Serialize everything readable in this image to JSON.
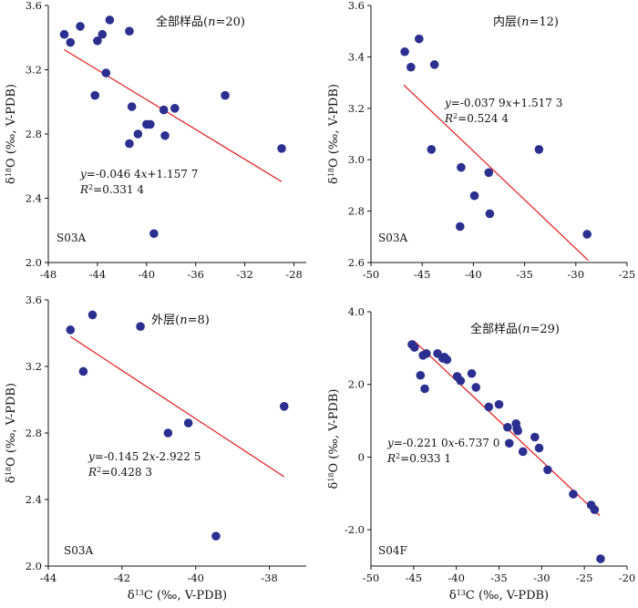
{
  "colors": {
    "point": "#2b2f8f",
    "fit_line": "#e31a1c",
    "axis": "#111111"
  },
  "chart_data": [
    {
      "type": "scatter",
      "title": "全部样品(n=20)",
      "sample_id": "S03A",
      "ylabel": "δ18O (‰, V-PDB)",
      "xlabel": "",
      "xlim": [
        -48,
        -27
      ],
      "ylim": [
        2.0,
        3.6
      ],
      "x_ticks": [
        "-48",
        "-44",
        "-40",
        "-36",
        "-32",
        "-28"
      ],
      "y_ticks": [
        "2.0",
        "2.4",
        "2.8",
        "3.2",
        "3.6"
      ],
      "equation": "y=-0.046 4x+1.157 7",
      "r_squared": "R²=0.331 4",
      "fit": {
        "slope": -0.0464,
        "intercept": 1.1577,
        "x_range": [
          -46.7,
          -29.0
        ]
      },
      "points": [
        {
          "x": -46.7,
          "y": 3.42
        },
        {
          "x": -46.2,
          "y": 3.37
        },
        {
          "x": -45.4,
          "y": 3.47
        },
        {
          "x": -44.0,
          "y": 3.38
        },
        {
          "x": -43.6,
          "y": 3.42
        },
        {
          "x": -43.0,
          "y": 3.51
        },
        {
          "x": -41.4,
          "y": 3.44
        },
        {
          "x": -43.3,
          "y": 3.18
        },
        {
          "x": -44.2,
          "y": 3.04
        },
        {
          "x": -41.2,
          "y": 2.97
        },
        {
          "x": -40.0,
          "y": 2.86
        },
        {
          "x": -39.7,
          "y": 2.86
        },
        {
          "x": -40.7,
          "y": 2.8
        },
        {
          "x": -41.4,
          "y": 2.74
        },
        {
          "x": -38.6,
          "y": 2.95
        },
        {
          "x": -37.7,
          "y": 2.96
        },
        {
          "x": -38.5,
          "y": 2.79
        },
        {
          "x": -33.6,
          "y": 3.04
        },
        {
          "x": -29.0,
          "y": 2.71
        },
        {
          "x": -39.4,
          "y": 2.18
        }
      ]
    },
    {
      "type": "scatter",
      "title": "内层(n=12)",
      "sample_id": "S03A",
      "ylabel": "δ18O (‰, V-PDB)",
      "xlabel": "",
      "xlim": [
        -50,
        -25
      ],
      "ylim": [
        2.6,
        3.6
      ],
      "x_ticks": [
        "-50",
        "-45",
        "-40",
        "-35",
        "-30",
        "-25"
      ],
      "y_ticks": [
        "2.6",
        "2.8",
        "3.0",
        "3.2",
        "3.4",
        "3.6"
      ],
      "equation": "y=-0.037 9x+1.517 3",
      "r_squared": "R²=0.524 4",
      "fit": {
        "slope": -0.0379,
        "intercept": 1.5173,
        "x_range": [
          -46.8,
          -28.8
        ]
      },
      "points": [
        {
          "x": -46.7,
          "y": 3.42
        },
        {
          "x": -45.3,
          "y": 3.47
        },
        {
          "x": -46.1,
          "y": 3.36
        },
        {
          "x": -43.8,
          "y": 3.37
        },
        {
          "x": -44.1,
          "y": 3.04
        },
        {
          "x": -41.2,
          "y": 2.97
        },
        {
          "x": -38.5,
          "y": 2.95
        },
        {
          "x": -39.9,
          "y": 2.86
        },
        {
          "x": -38.4,
          "y": 2.79
        },
        {
          "x": -41.3,
          "y": 2.74
        },
        {
          "x": -33.6,
          "y": 3.04
        },
        {
          "x": -28.9,
          "y": 2.71
        }
      ]
    },
    {
      "type": "scatter",
      "title": "外层(n=8)",
      "sample_id": "S03A",
      "ylabel": "δ18O (‰, V-PDB)",
      "xlabel": "δ13C (‰, V-PDB)",
      "xlim": [
        -44,
        -37
      ],
      "ylim": [
        2.0,
        3.6
      ],
      "x_ticks": [
        "-44",
        "-42",
        "-40",
        "-38"
      ],
      "y_ticks": [
        "2.0",
        "2.4",
        "2.8",
        "3.2",
        "3.6"
      ],
      "equation": "y=-0.145 2x-2.922 5",
      "r_squared": "R²=0.428 3",
      "fit": {
        "slope": -0.1452,
        "intercept": -2.9225,
        "x_range": [
          -43.4,
          -37.6
        ]
      },
      "points": [
        {
          "x": -43.4,
          "y": 3.42
        },
        {
          "x": -42.8,
          "y": 3.51
        },
        {
          "x": -43.05,
          "y": 3.17
        },
        {
          "x": -41.5,
          "y": 3.44
        },
        {
          "x": -40.75,
          "y": 2.8
        },
        {
          "x": -40.2,
          "y": 2.86
        },
        {
          "x": -37.6,
          "y": 2.96
        },
        {
          "x": -39.45,
          "y": 2.18
        }
      ]
    },
    {
      "type": "scatter",
      "title": "全部样品(n=29)",
      "sample_id": "S04F",
      "ylabel": "δ18O (‰, V-PDB)",
      "xlabel": "δ13C (‰, V-PDB)",
      "xlim": [
        -50,
        -20
      ],
      "ylim": [
        -3.0,
        4.0
      ],
      "x_ticks": [
        "-50",
        "-45",
        "-40",
        "-35",
        "-30",
        "-25",
        "-20"
      ],
      "y_ticks": [
        "-2.0",
        "0",
        "2.0",
        "4.0"
      ],
      "equation": "y=-0.221 0x-6.737 0",
      "r_squared": "R²=0.933 1",
      "fit": {
        "slope": -0.221,
        "intercept": -6.737,
        "x_range": [
          -45.0,
          -23.2
        ]
      },
      "points": [
        {
          "x": -45.2,
          "y": 3.1
        },
        {
          "x": -44.9,
          "y": 3.02
        },
        {
          "x": -43.9,
          "y": 2.8
        },
        {
          "x": -43.5,
          "y": 2.85
        },
        {
          "x": -42.2,
          "y": 2.85
        },
        {
          "x": -41.6,
          "y": 2.72
        },
        {
          "x": -41.1,
          "y": 2.68
        },
        {
          "x": -44.2,
          "y": 2.25
        },
        {
          "x": -43.7,
          "y": 1.88
        },
        {
          "x": -39.9,
          "y": 2.22
        },
        {
          "x": -39.5,
          "y": 2.1
        },
        {
          "x": -38.2,
          "y": 2.3
        },
        {
          "x": -37.7,
          "y": 1.92
        },
        {
          "x": -36.2,
          "y": 1.38
        },
        {
          "x": -35.0,
          "y": 1.45
        },
        {
          "x": -34.0,
          "y": 0.82
        },
        {
          "x": -33.0,
          "y": 0.92
        },
        {
          "x": -32.9,
          "y": 0.78
        },
        {
          "x": -33.8,
          "y": 0.38
        },
        {
          "x": -32.2,
          "y": 0.15
        },
        {
          "x": -30.8,
          "y": 0.55
        },
        {
          "x": -30.3,
          "y": 0.25
        },
        {
          "x": -29.3,
          "y": -0.35
        },
        {
          "x": -26.3,
          "y": -1.02
        },
        {
          "x": -24.2,
          "y": -1.32
        },
        {
          "x": -23.8,
          "y": -1.45
        },
        {
          "x": -23.1,
          "y": -2.8
        },
        {
          "x": -32.8,
          "y": 0.72
        },
        {
          "x": -41.4,
          "y": 2.75
        }
      ]
    }
  ]
}
